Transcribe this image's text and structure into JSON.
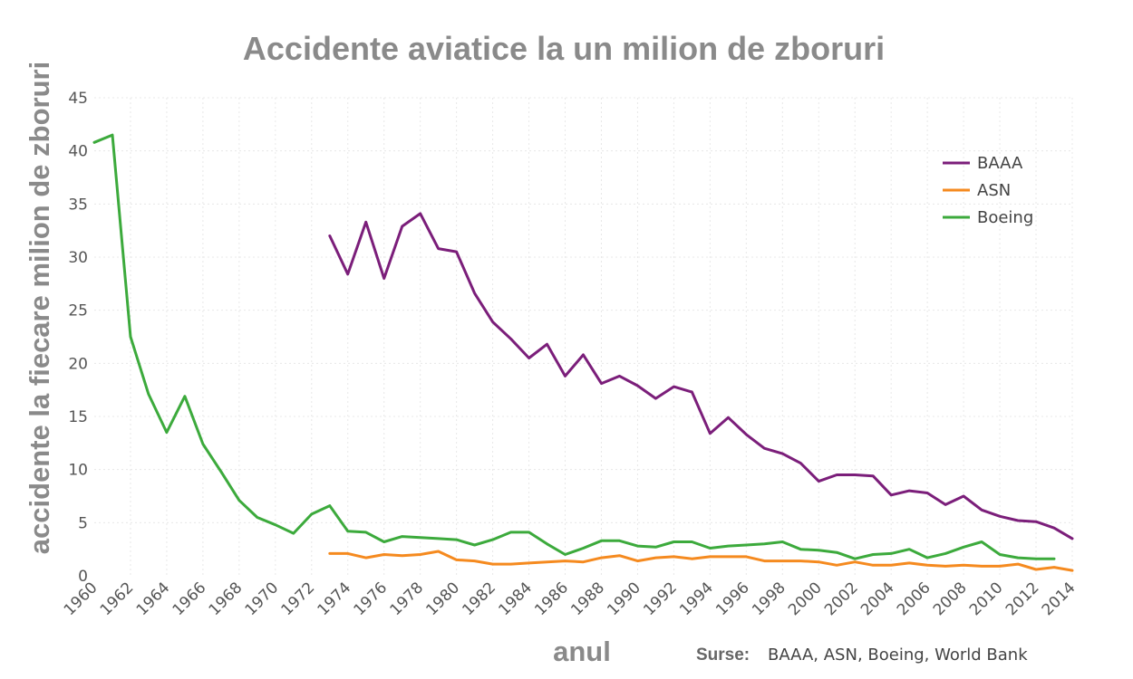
{
  "chart_data": {
    "type": "line",
    "title": "Accidente aviatice la un milion de zboruri",
    "xlabel": "anul",
    "ylabel": "accidente la fiecare milion de zboruri",
    "xlim": [
      1960,
      2014
    ],
    "ylim": [
      0,
      45
    ],
    "x_ticks": [
      "1960",
      "1962",
      "1964",
      "1966",
      "1968",
      "1970",
      "1972",
      "1974",
      "1976",
      "1978",
      "1980",
      "1982",
      "1984",
      "1986",
      "1988",
      "1990",
      "1992",
      "1994",
      "1996",
      "1998",
      "2000",
      "2002",
      "2004",
      "2006",
      "2008",
      "2010",
      "2012",
      "2014"
    ],
    "y_ticks": [
      "0",
      "5",
      "10",
      "15",
      "20",
      "25",
      "30",
      "35",
      "40",
      "45"
    ],
    "grid": true,
    "legend_position": "top-right",
    "source_label": "Surse:",
    "source_value": "BAAA, ASN, Boeing, World Bank",
    "series": [
      {
        "name": "BAAA",
        "color": "#7b1e7a",
        "x": [
          1973,
          1974,
          1975,
          1976,
          1977,
          1978,
          1979,
          1980,
          1981,
          1982,
          1983,
          1984,
          1985,
          1986,
          1987,
          1988,
          1989,
          1990,
          1991,
          1992,
          1993,
          1994,
          1995,
          1996,
          1997,
          1998,
          1999,
          2000,
          2001,
          2002,
          2003,
          2004,
          2005,
          2006,
          2007,
          2008,
          2009,
          2010,
          2011,
          2012,
          2013,
          2014
        ],
        "values": [
          32,
          28.4,
          33.3,
          28,
          32.9,
          34.1,
          30.8,
          30.5,
          26.6,
          23.9,
          22.3,
          20.5,
          21.8,
          18.8,
          20.8,
          18.1,
          18.8,
          17.9,
          16.7,
          17.8,
          17.3,
          13.4,
          14.9,
          13.3,
          12,
          11.5,
          10.6,
          8.9,
          9.5,
          9.5,
          9.4,
          7.6,
          8,
          7.8,
          6.7,
          7.5,
          6.2,
          5.6,
          5.2,
          5.1,
          4.5,
          3.5
        ]
      },
      {
        "name": "ASN",
        "color": "#f58a1f",
        "x": [
          1973,
          1974,
          1975,
          1976,
          1977,
          1978,
          1979,
          1980,
          1981,
          1982,
          1983,
          1984,
          1985,
          1986,
          1987,
          1988,
          1989,
          1990,
          1991,
          1992,
          1993,
          1994,
          1995,
          1996,
          1997,
          1998,
          1999,
          2000,
          2001,
          2002,
          2003,
          2004,
          2005,
          2006,
          2007,
          2008,
          2009,
          2010,
          2011,
          2012,
          2013,
          2014
        ],
        "values": [
          2.1,
          2.1,
          1.7,
          2,
          1.9,
          2,
          2.3,
          1.5,
          1.4,
          1.1,
          1.1,
          1.2,
          1.3,
          1.4,
          1.3,
          1.7,
          1.9,
          1.4,
          1.7,
          1.8,
          1.6,
          1.8,
          1.8,
          1.8,
          1.4,
          1.4,
          1.4,
          1.3,
          1,
          1.3,
          1,
          1,
          1.2,
          1,
          0.9,
          1,
          0.9,
          0.9,
          1.1,
          0.6,
          0.8,
          0.5
        ]
      },
      {
        "name": "Boeing",
        "color": "#3caa3c",
        "x": [
          1960,
          1961,
          1962,
          1963,
          1964,
          1965,
          1966,
          1967,
          1968,
          1969,
          1970,
          1971,
          1972,
          1973,
          1974,
          1975,
          1976,
          1977,
          1978,
          1979,
          1980,
          1981,
          1982,
          1983,
          1984,
          1985,
          1986,
          1987,
          1988,
          1989,
          1990,
          1991,
          1992,
          1993,
          1994,
          1995,
          1996,
          1997,
          1998,
          1999,
          2000,
          2001,
          2002,
          2003,
          2004,
          2005,
          2006,
          2007,
          2008,
          2009,
          2010,
          2011,
          2012,
          2013
        ],
        "values": [
          40.8,
          41.5,
          22.5,
          17.1,
          13.5,
          16.9,
          12.4,
          9.8,
          7.1,
          5.5,
          4.8,
          4,
          5.8,
          6.6,
          4.2,
          4.1,
          3.2,
          3.7,
          3.6,
          3.5,
          3.4,
          2.9,
          3.4,
          4.1,
          4.1,
          3,
          2,
          2.6,
          3.3,
          3.3,
          2.8,
          2.7,
          3.2,
          3.2,
          2.6,
          2.8,
          2.9,
          3,
          3.2,
          2.5,
          2.4,
          2.2,
          1.6,
          2,
          2.1,
          2.5,
          1.7,
          2.1,
          2.7,
          3.2,
          2,
          1.7,
          1.6,
          1.6
        ]
      }
    ]
  }
}
